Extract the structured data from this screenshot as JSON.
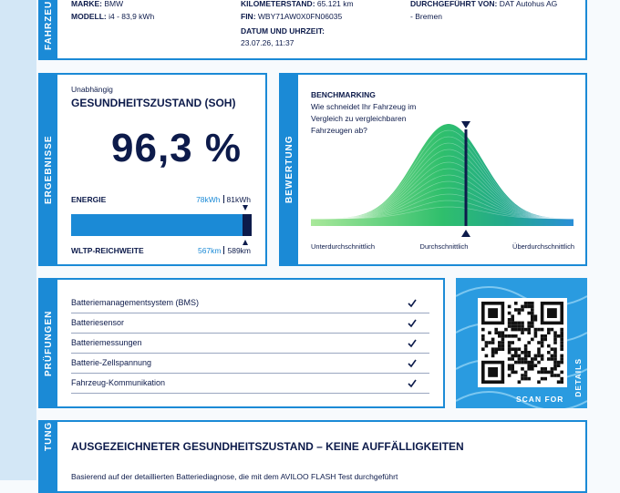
{
  "vehicle": {
    "side_label": "FAHRZEU",
    "brand_label": "MARKE:",
    "brand": "BMW",
    "model_label": "MODELL:",
    "model": "i4 - 83,9 kWh",
    "mileage_label": "KILOMETERSTAND:",
    "mileage": "65.121 km",
    "vin_label": "FIN:",
    "vin": "WBY71AW0X0FN06035",
    "date_label": "DATUM UND UHRZEIT:",
    "date": "23.07.26, 11:37",
    "performed_by_label": "DURCHGEFÜHRT VON:",
    "performed_by": "DAT Autohus AG",
    "performed_by_city": "- Bremen"
  },
  "results": {
    "side_label": "ERGEBNISSE",
    "kicker": "Unabhängig",
    "title": "GESUNDHEITSZUSTAND (SOH)",
    "soh": "96,3 %",
    "energy_label": "ENERGIE",
    "energy_current": "78kWh",
    "energy_total": "81kWh",
    "range_label": "WLTP-REICHWEITE",
    "range_current": "567km",
    "range_total": "589km"
  },
  "rating": {
    "side_label": "BEWERTUNG",
    "title": "BENCHMARKING",
    "question": "Wie schneidet Ihr Fahrzeug im Vergleich zu vergleichbaren Fahrzeugen ab?",
    "scale": [
      "Unterdurchschnittlich",
      "Durchschnittlich",
      "Überdurchschnittlich"
    ]
  },
  "checks": {
    "side_label": "PRÜFUNGEN",
    "items": [
      "Batteriemanagementsystem (BMS)",
      "Batteriesensor",
      "Batteriemessungen",
      "Batterie-Zellspannung",
      "Fahrzeug-Kommunikation"
    ]
  },
  "qr": {
    "scan_label": "SCAN FOR",
    "details_label": "DETAILS"
  },
  "summary": {
    "side_label": "TUNG",
    "title": "AUSGEZEICHNETER GESUNDHEITSZUSTAND – KEINE AUFFÄLLIGKEITEN",
    "text": "Basierend auf der detaillierten Batteriediagnose, die mit dem AVILOO FLASH Test durchgeführt"
  }
}
